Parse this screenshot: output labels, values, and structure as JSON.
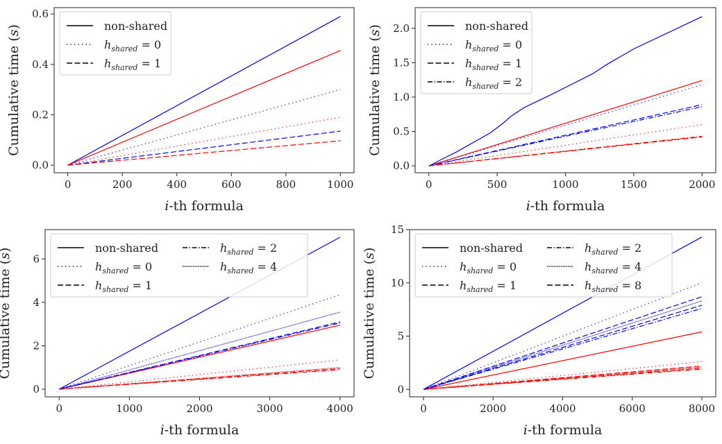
{
  "colors": {
    "blue": "#0000ff",
    "red": "#ff0000",
    "axis": "#222222"
  },
  "line_styles": {
    "non-shared": "solid",
    "h_shared = 0": "dotted",
    "h_shared = 1": "dashed",
    "h_shared = 2": "dashdot",
    "h_shared = 4": "densely-dotted",
    "h_shared = 8": "dashed"
  },
  "chart_data": [
    {
      "type": "line",
      "xlabel": "i-th formula",
      "ylabel": "Cumulative time (s)",
      "xlim": [
        -50,
        1050
      ],
      "ylim": [
        -0.03,
        0.625
      ],
      "xticks": [
        0,
        200,
        400,
        600,
        800,
        1000
      ],
      "yticks": [
        0.0,
        0.2,
        0.4,
        0.6
      ],
      "ytick_labels": [
        "0.0",
        "0.2",
        "0.4",
        "0.6"
      ],
      "legend": {
        "placement": "top-left",
        "entries": [
          "non-shared",
          "h_shared = 0",
          "h_shared = 1"
        ]
      },
      "series": [
        {
          "style": "non-shared",
          "color": "blue",
          "x": [
            0,
            1000
          ],
          "y": [
            0,
            0.59
          ]
        },
        {
          "style": "non-shared",
          "color": "red",
          "x": [
            0,
            1000
          ],
          "y": [
            0,
            0.455
          ]
        },
        {
          "style": "h_shared = 0",
          "color": "blue",
          "x": [
            0,
            1000
          ],
          "y": [
            0,
            0.3
          ]
        },
        {
          "style": "h_shared = 0",
          "color": "red",
          "x": [
            0,
            1000
          ],
          "y": [
            0,
            0.19
          ]
        },
        {
          "style": "h_shared = 1",
          "color": "blue",
          "x": [
            0,
            1000
          ],
          "y": [
            0,
            0.135
          ]
        },
        {
          "style": "h_shared = 1",
          "color": "red",
          "x": [
            0,
            1000
          ],
          "y": [
            0,
            0.097
          ]
        }
      ]
    },
    {
      "type": "line",
      "xlabel": "i-th formula",
      "ylabel": "Cumulative time (s)",
      "xlim": [
        -100,
        2100
      ],
      "ylim": [
        -0.1,
        2.3
      ],
      "xticks": [
        0,
        500,
        1000,
        1500,
        2000
      ],
      "yticks": [
        0.0,
        0.5,
        1.0,
        1.5,
        2.0
      ],
      "ytick_labels": [
        "0.0",
        "0.5",
        "1.0",
        "1.5",
        "2.0"
      ],
      "legend": {
        "placement": "top-left",
        "entries": [
          "non-shared",
          "h_shared = 0",
          "h_shared = 1",
          "h_shared = 2"
        ]
      },
      "series": [
        {
          "style": "non-shared",
          "color": "blue",
          "x": [
            0,
            200,
            450,
            550,
            600,
            700,
            900,
            1200,
            1300,
            1500,
            2000
          ],
          "y": [
            0,
            0.2,
            0.48,
            0.63,
            0.72,
            0.85,
            1.04,
            1.34,
            1.47,
            1.7,
            2.17
          ]
        },
        {
          "style": "non-shared",
          "color": "red",
          "x": [
            0,
            2000
          ],
          "y": [
            0,
            1.24
          ]
        },
        {
          "style": "h_shared = 0",
          "color": "blue",
          "x": [
            0,
            2000
          ],
          "y": [
            0,
            1.18
          ]
        },
        {
          "style": "h_shared = 0",
          "color": "red",
          "x": [
            0,
            2000
          ],
          "y": [
            0,
            0.6
          ]
        },
        {
          "style": "h_shared = 1",
          "color": "blue",
          "x": [
            0,
            2000
          ],
          "y": [
            0,
            0.89
          ]
        },
        {
          "style": "h_shared = 1",
          "color": "red",
          "x": [
            0,
            2000
          ],
          "y": [
            0,
            0.42
          ]
        },
        {
          "style": "h_shared = 2",
          "color": "blue",
          "x": [
            0,
            2000
          ],
          "y": [
            0,
            0.86
          ]
        },
        {
          "style": "h_shared = 2",
          "color": "red",
          "x": [
            0,
            2000
          ],
          "y": [
            0,
            0.43
          ]
        }
      ]
    },
    {
      "type": "line",
      "xlabel": "i-th formula",
      "ylabel": "Cumulative time (s)",
      "xlim": [
        -200,
        4200
      ],
      "ylim": [
        -0.35,
        7.35
      ],
      "xticks": [
        0,
        1000,
        2000,
        3000,
        4000
      ],
      "yticks": [
        0,
        2,
        4,
        6
      ],
      "ytick_labels": [
        "0",
        "2",
        "4",
        "6"
      ],
      "legend": {
        "placement": "top-left",
        "columns": 2,
        "entries": [
          "non-shared",
          "h_shared = 0",
          "h_shared = 1",
          "h_shared = 2",
          "h_shared = 4"
        ]
      },
      "series": [
        {
          "style": "non-shared",
          "color": "blue",
          "x": [
            0,
            4000
          ],
          "y": [
            0,
            7.0
          ]
        },
        {
          "style": "non-shared",
          "color": "red",
          "x": [
            0,
            4000
          ],
          "y": [
            0,
            2.95
          ]
        },
        {
          "style": "h_shared = 0",
          "color": "blue",
          "x": [
            0,
            4000
          ],
          "y": [
            0,
            4.35
          ]
        },
        {
          "style": "h_shared = 0",
          "color": "red",
          "x": [
            0,
            4000
          ],
          "y": [
            0,
            1.35
          ]
        },
        {
          "style": "h_shared = 4",
          "color": "blue",
          "x": [
            0,
            4000
          ],
          "y": [
            0,
            3.55
          ]
        },
        {
          "style": "h_shared = 4",
          "color": "red",
          "x": [
            0,
            4000
          ],
          "y": [
            0,
            1.0
          ]
        },
        {
          "style": "h_shared = 1",
          "color": "blue",
          "x": [
            0,
            4000
          ],
          "y": [
            0,
            3.1
          ]
        },
        {
          "style": "h_shared = 1",
          "color": "red",
          "x": [
            0,
            4000
          ],
          "y": [
            0,
            0.95
          ]
        },
        {
          "style": "h_shared = 2",
          "color": "blue",
          "x": [
            0,
            4000
          ],
          "y": [
            0,
            3.05
          ]
        },
        {
          "style": "h_shared = 2",
          "color": "red",
          "x": [
            0,
            4000
          ],
          "y": [
            0,
            0.9
          ]
        }
      ]
    },
    {
      "type": "line",
      "xlabel": "i-th formula",
      "ylabel": "Cumulative time (s)",
      "xlim": [
        -400,
        8400
      ],
      "ylim": [
        -0.7,
        15.0
      ],
      "xticks": [
        0,
        2000,
        4000,
        6000,
        8000
      ],
      "yticks": [
        0,
        5,
        10,
        15
      ],
      "ytick_labels": [
        "0",
        "5",
        "10",
        "15"
      ],
      "legend": {
        "placement": "top-left",
        "columns": 2,
        "entries": [
          "non-shared",
          "h_shared = 0",
          "h_shared = 1",
          "h_shared = 2",
          "h_shared = 4",
          "h_shared = 8"
        ]
      },
      "series": [
        {
          "style": "non-shared",
          "color": "blue",
          "x": [
            0,
            8000
          ],
          "y": [
            0,
            14.3
          ]
        },
        {
          "style": "non-shared",
          "color": "red",
          "x": [
            0,
            8000
          ],
          "y": [
            0,
            5.4
          ]
        },
        {
          "style": "h_shared = 0",
          "color": "blue",
          "x": [
            0,
            8000
          ],
          "y": [
            0,
            10.0
          ]
        },
        {
          "style": "h_shared = 0",
          "color": "red",
          "x": [
            0,
            8000
          ],
          "y": [
            0,
            2.6
          ]
        },
        {
          "style": "h_shared = 1",
          "color": "blue",
          "x": [
            0,
            8000
          ],
          "y": [
            0,
            8.7
          ]
        },
        {
          "style": "h_shared = 1",
          "color": "red",
          "x": [
            0,
            8000
          ],
          "y": [
            0,
            2.2
          ]
        },
        {
          "style": "h_shared = 4",
          "color": "blue",
          "x": [
            0,
            8000
          ],
          "y": [
            0,
            8.3
          ]
        },
        {
          "style": "h_shared = 4",
          "color": "red",
          "x": [
            0,
            8000
          ],
          "y": [
            0,
            2.1
          ]
        },
        {
          "style": "h_shared = 8",
          "color": "blue",
          "x": [
            0,
            8000
          ],
          "y": [
            0,
            7.9
          ]
        },
        {
          "style": "h_shared = 8",
          "color": "red",
          "x": [
            0,
            8000
          ],
          "y": [
            0,
            2.0
          ]
        },
        {
          "style": "h_shared = 2",
          "color": "blue",
          "x": [
            0,
            8000
          ],
          "y": [
            0,
            7.6
          ]
        },
        {
          "style": "h_shared = 2",
          "color": "red",
          "x": [
            0,
            8000
          ],
          "y": [
            0,
            1.9
          ]
        }
      ]
    }
  ]
}
